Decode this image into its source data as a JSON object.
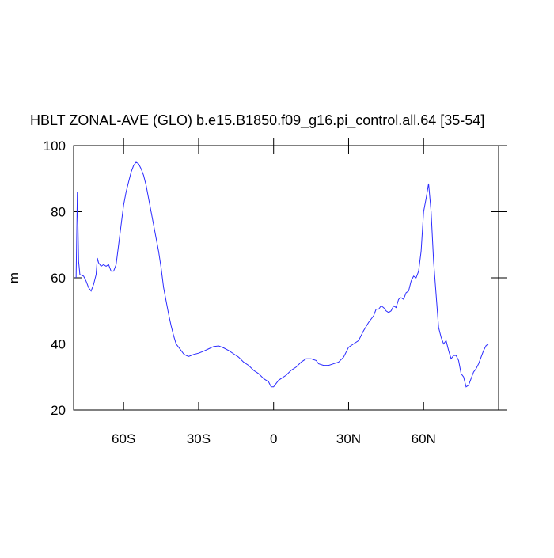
{
  "chart_data": {
    "type": "line",
    "title": "HBLT ZONAL-AVE (GLO) b.e15.B1850.f09_g16.pi_control.all.64 [35-54]",
    "y_label": "m",
    "xlim": [
      -80,
      90
    ],
    "ylim": [
      20,
      100
    ],
    "xticks": [
      {
        "value": -60,
        "label": "60S"
      },
      {
        "value": -30,
        "label": "30S"
      },
      0,
      {
        "value": 30,
        "label": "30N"
      },
      {
        "value": 60,
        "label": "60N"
      }
    ],
    "yticks": [
      20,
      40,
      60,
      80,
      100
    ],
    "grid": false,
    "color": "#2b2bff",
    "x": [
      -79,
      -78.5,
      -78,
      -77.5,
      -76,
      -75,
      -74,
      -73,
      -72,
      -71,
      -70.5,
      -70,
      -69,
      -68,
      -67,
      -66,
      -65,
      -64,
      -63,
      -62,
      -61,
      -60,
      -59,
      -58,
      -57,
      -56,
      -55,
      -54,
      -53,
      -52,
      -51,
      -50,
      -49,
      -48,
      -47,
      -46,
      -45,
      -44,
      -43,
      -42,
      -41,
      -40,
      -39,
      -38,
      -37,
      -36,
      -35,
      -34,
      -33,
      -32,
      -30,
      -28,
      -26,
      -24,
      -22,
      -20,
      -18,
      -16,
      -14,
      -12,
      -10,
      -8,
      -6,
      -4,
      -2,
      -1,
      0,
      1,
      2,
      3,
      5,
      7,
      9,
      11,
      13,
      15,
      17,
      18,
      20,
      22,
      24,
      26,
      28,
      30,
      32,
      34,
      36,
      38,
      40,
      41,
      42,
      43,
      44,
      45,
      46,
      47,
      48,
      49,
      50,
      51,
      52,
      53,
      54,
      55,
      56,
      57,
      58,
      59,
      60,
      61,
      62,
      63,
      64,
      65,
      66,
      67,
      68,
      69,
      70,
      71,
      72,
      73,
      74,
      75,
      76,
      77,
      78,
      79,
      80,
      81,
      82,
      83,
      84,
      85,
      86,
      88,
      90
    ],
    "values": [
      60,
      86,
      65,
      61,
      60.5,
      59,
      57,
      56,
      58,
      61,
      66,
      64.5,
      63.5,
      64,
      63.5,
      64,
      62,
      62,
      64,
      70,
      76,
      82,
      86,
      89,
      92,
      94,
      95,
      94.5,
      93,
      91,
      88,
      84,
      80,
      76,
      72,
      68,
      63,
      57,
      53,
      49,
      45.5,
      42.5,
      40,
      39,
      38,
      37,
      36.5,
      36.2,
      36.5,
      36.8,
      37.2,
      37.8,
      38.5,
      39.2,
      39.4,
      38.8,
      38,
      37,
      36,
      34.5,
      33.5,
      32,
      31,
      29.5,
      28.5,
      27,
      27,
      28,
      29,
      29.5,
      30.5,
      32,
      33,
      34.5,
      35.5,
      35.5,
      35,
      34,
      33.5,
      33.5,
      34,
      34.5,
      36,
      39,
      40,
      41,
      44,
      46.5,
      48.5,
      50.5,
      50.5,
      51.5,
      51,
      50,
      49.5,
      50,
      51.5,
      51,
      53.5,
      54,
      53.5,
      55.5,
      56,
      59,
      60.5,
      60,
      62,
      68,
      80,
      84,
      88.5,
      80,
      65,
      55,
      45,
      42,
      40,
      41,
      38,
      35.5,
      36.5,
      36.5,
      35,
      31,
      30,
      27,
      27.5,
      29.5,
      31.5,
      32.5,
      34,
      36,
      38,
      39.5,
      40,
      40,
      40
    ]
  }
}
